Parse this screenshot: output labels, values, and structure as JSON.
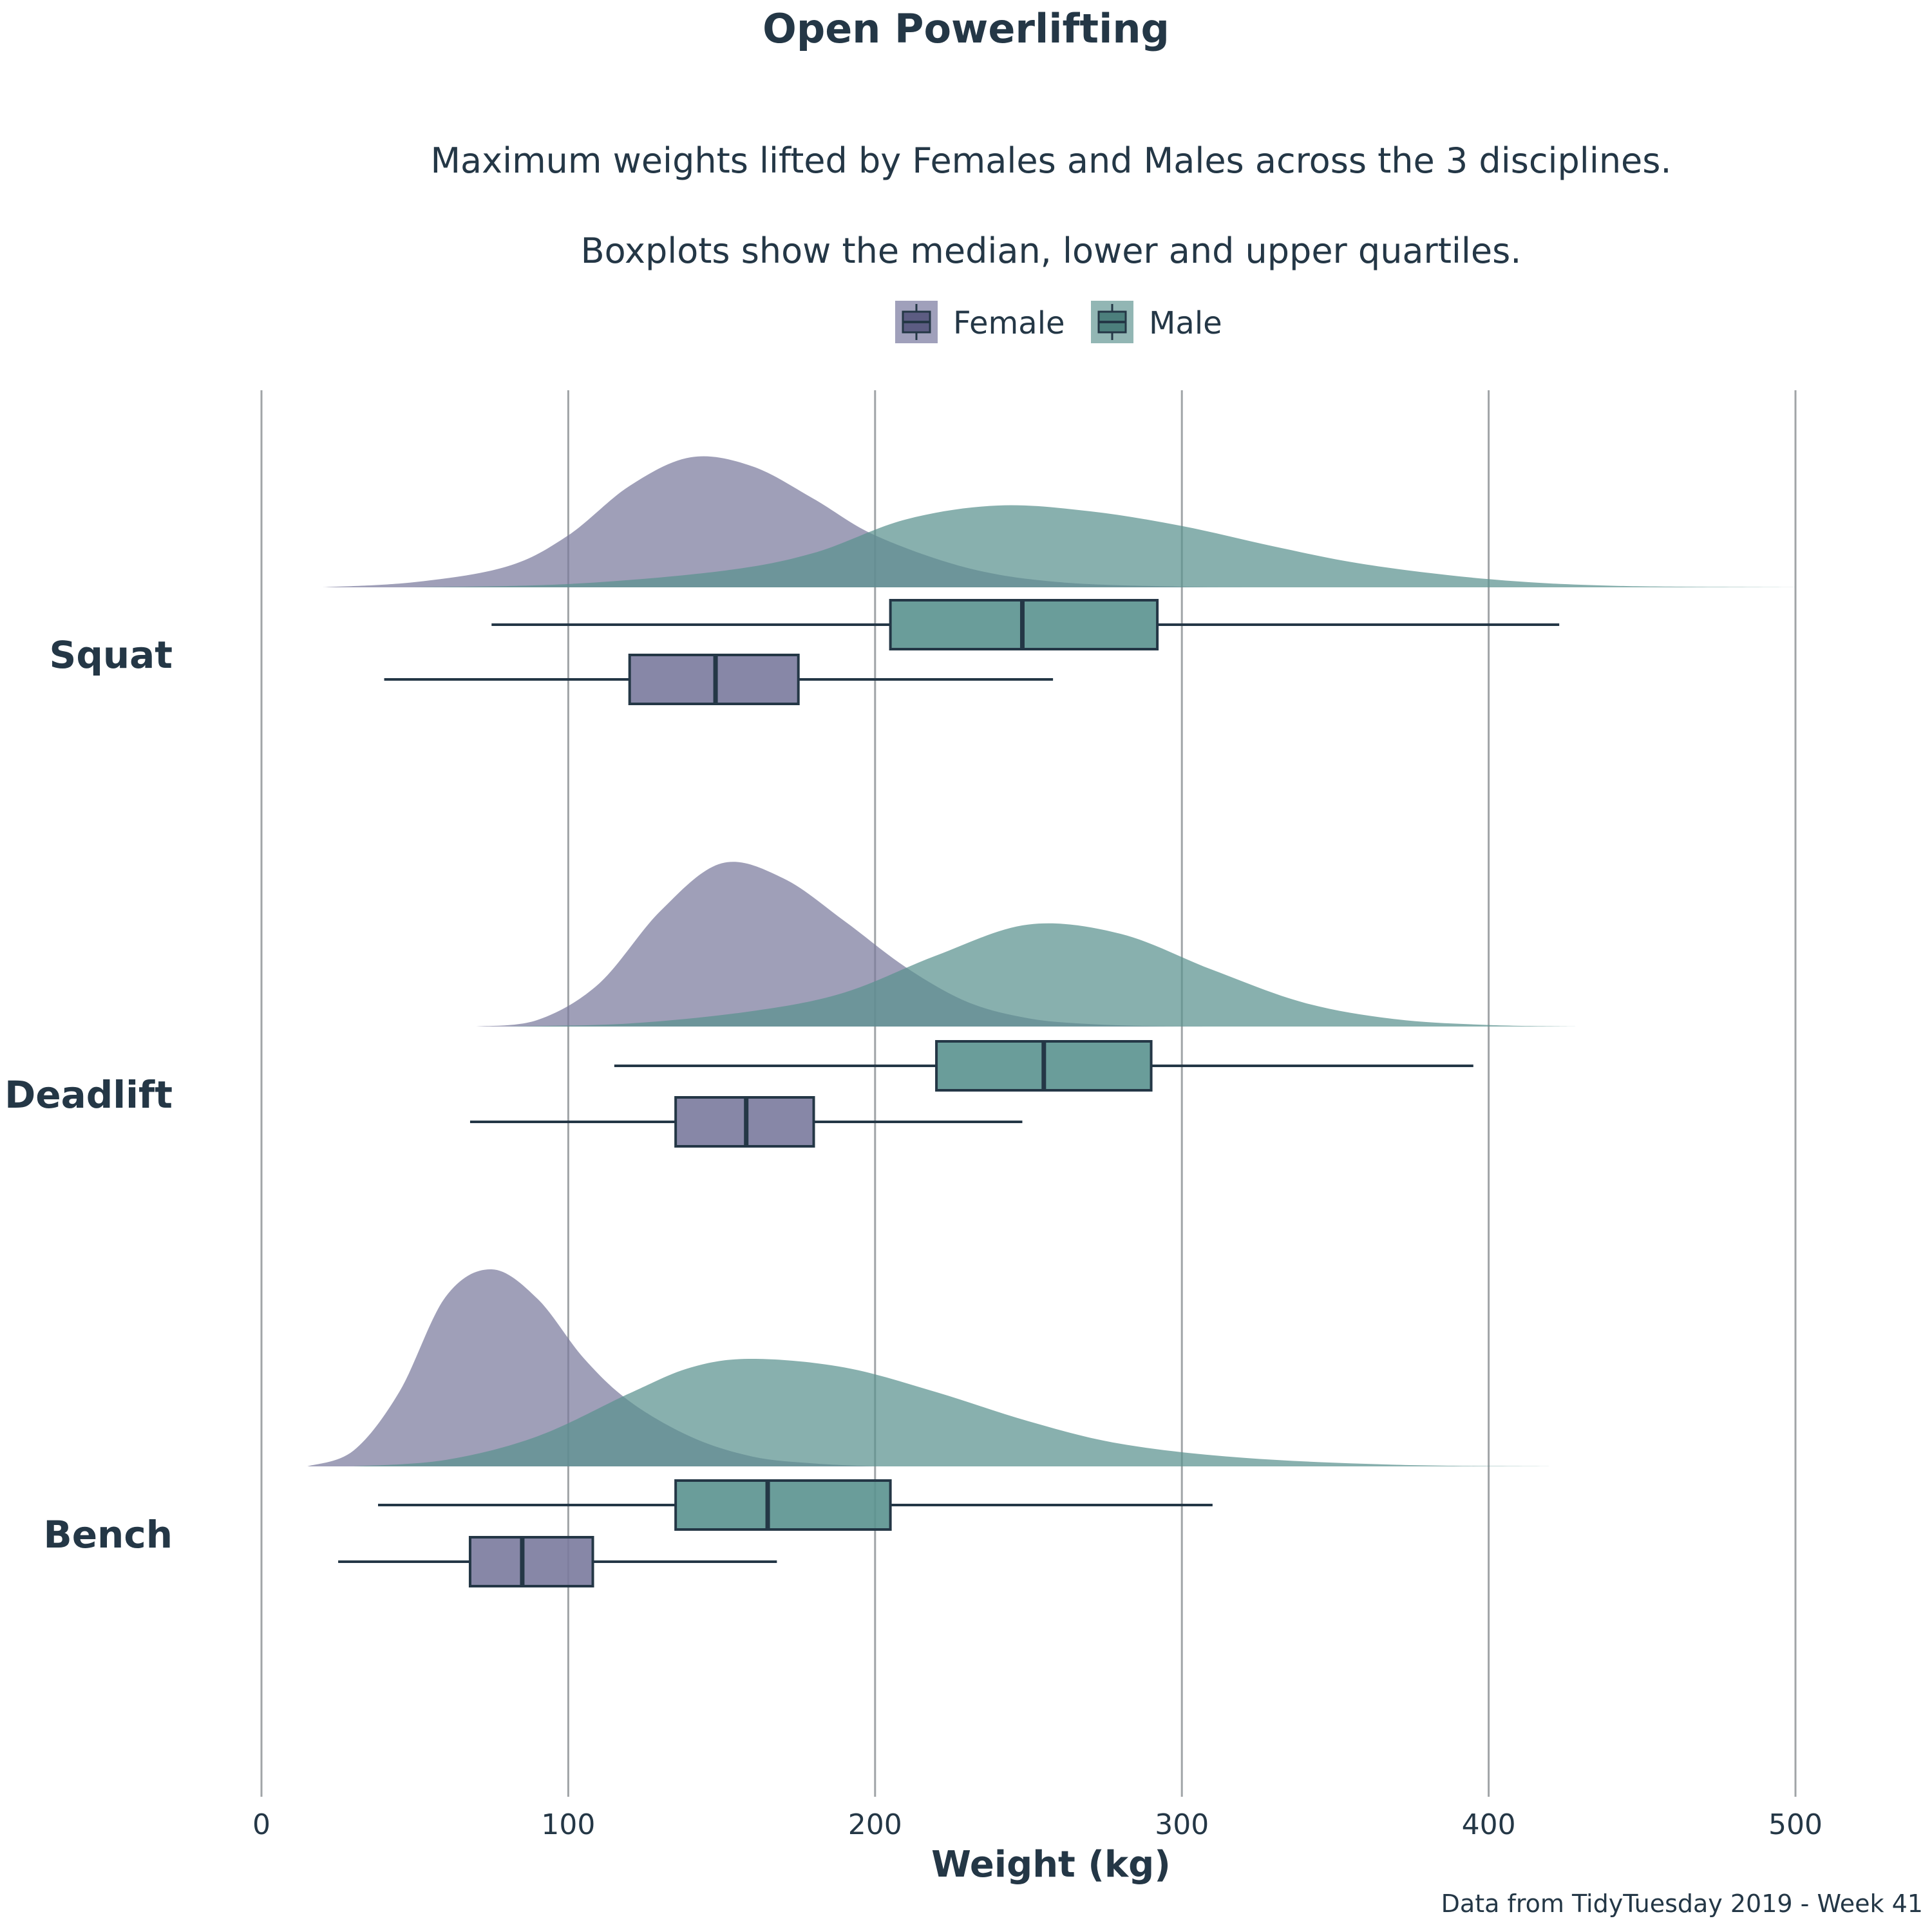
{
  "chart_data": {
    "type": "raincloud",
    "title": "Open Powerlifting",
    "subtitle_line1": "Maximum weights lifted by Females and Males across the 3 disciplines.",
    "subtitle_line2": "Boxplots show the median, lower and upper quartiles.",
    "xlabel": "Weight (kg)",
    "caption": "Data from TidyTuesday 2019 - Week 41",
    "xlim": [
      0,
      500
    ],
    "xticks": [
      "0",
      "100",
      "200",
      "300",
      "400",
      "500"
    ],
    "grid": "vertical major",
    "legend_position": "top",
    "colors": {
      "Female": "#7a7a9d",
      "Male": "#5a928f",
      "stroke": "#243746",
      "grid": "#a0a4a7"
    },
    "categories": [
      "Squat",
      "Deadlift",
      "Bench"
    ],
    "series": [
      {
        "name": "Female",
        "boxes": [
          {
            "category": "Squat",
            "whisker_low": 40,
            "q1": 120,
            "median": 148,
            "q3": 175,
            "whisker_high": 258
          },
          {
            "category": "Deadlift",
            "whisker_low": 68,
            "q1": 135,
            "median": 158,
            "q3": 180,
            "whisker_high": 248
          },
          {
            "category": "Bench",
            "whisker_low": 25,
            "q1": 68,
            "median": 85,
            "q3": 108,
            "whisker_high": 168
          }
        ],
        "densities": [
          {
            "category": "Squat",
            "x": [
              20,
              50,
              80,
              100,
              120,
              140,
              160,
              180,
              200,
              230,
              260,
              300,
              330
            ],
            "y": [
              0,
              0.04,
              0.16,
              0.4,
              0.78,
              1.0,
              0.93,
              0.68,
              0.4,
              0.15,
              0.04,
              0.005,
              0
            ]
          },
          {
            "category": "Deadlift",
            "x": [
              70,
              90,
              110,
              130,
              150,
              170,
              190,
              210,
              230,
              250,
              270,
              290,
              310
            ],
            "y": [
              0,
              0.04,
              0.26,
              0.7,
              0.99,
              0.9,
              0.64,
              0.36,
              0.15,
              0.05,
              0.015,
              0.003,
              0
            ]
          },
          {
            "category": "Bench",
            "x": [
              15,
              30,
              45,
              60,
              75,
              90,
              105,
              120,
              140,
              160,
              180,
              200
            ],
            "y": [
              0,
              0.08,
              0.38,
              0.86,
              1.0,
              0.85,
              0.55,
              0.33,
              0.15,
              0.05,
              0.015,
              0
            ]
          }
        ]
      },
      {
        "name": "Male",
        "boxes": [
          {
            "category": "Squat",
            "whisker_low": 75,
            "q1": 205,
            "median": 248,
            "q3": 292,
            "whisker_high": 423
          },
          {
            "category": "Deadlift",
            "whisker_low": 115,
            "q1": 220,
            "median": 255,
            "q3": 290,
            "whisker_high": 395
          },
          {
            "category": "Bench",
            "whisker_low": 38,
            "q1": 135,
            "median": 165,
            "q3": 205,
            "whisker_high": 310
          }
        ],
        "densities": [
          {
            "category": "Squat",
            "x": [
              50,
              100,
              150,
              180,
              210,
              240,
              270,
              300,
              330,
              360,
              400,
              440,
              500
            ],
            "y": [
              0,
              0.04,
              0.2,
              0.42,
              0.83,
              1.0,
              0.93,
              0.75,
              0.5,
              0.28,
              0.1,
              0.02,
              0
            ]
          },
          {
            "category": "Deadlift",
            "x": [
              80,
              120,
              160,
              190,
              220,
              250,
              280,
              310,
              340,
              370,
              400,
              430
            ],
            "y": [
              0,
              0.03,
              0.15,
              0.33,
              0.69,
              0.99,
              0.9,
              0.55,
              0.23,
              0.07,
              0.015,
              0
            ]
          },
          {
            "category": "Bench",
            "x": [
              30,
              60,
              90,
              120,
              140,
              160,
              190,
              220,
              250,
              280,
              320,
              370,
              420
            ],
            "y": [
              0,
              0.06,
              0.28,
              0.68,
              0.92,
              1.0,
              0.92,
              0.69,
              0.42,
              0.21,
              0.08,
              0.015,
              0
            ]
          }
        ]
      }
    ]
  }
}
